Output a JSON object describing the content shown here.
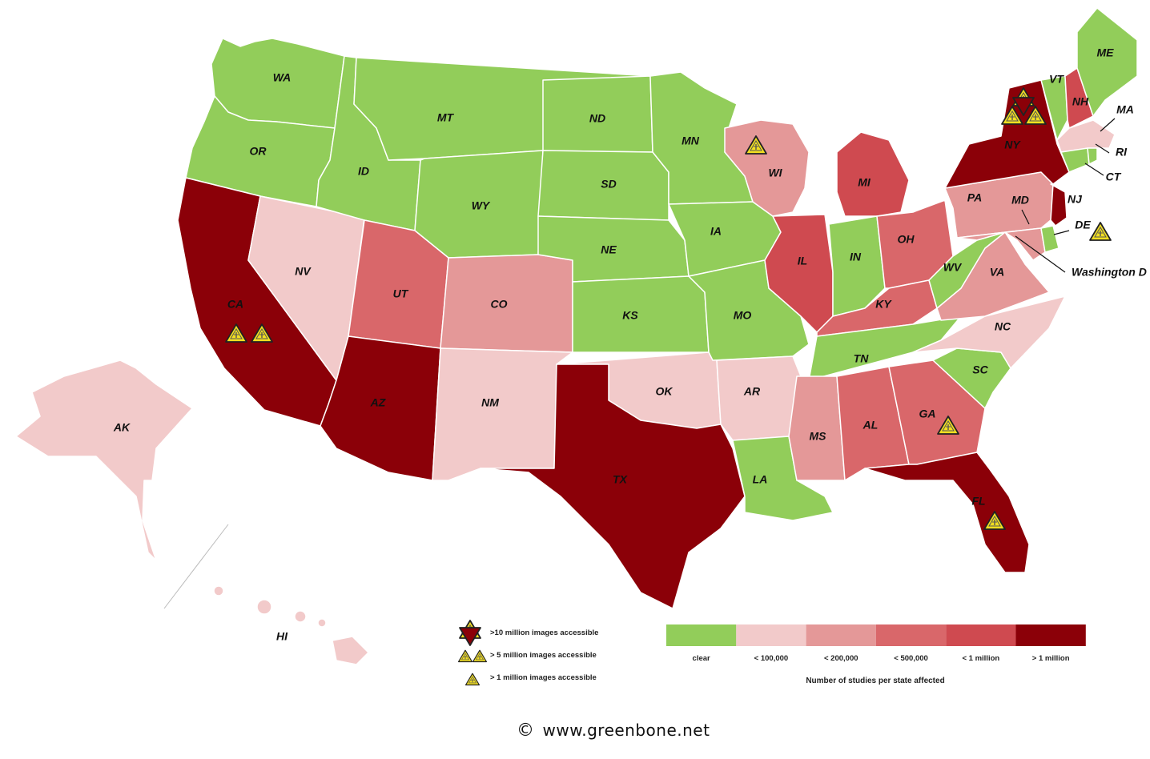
{
  "colors": {
    "clear": "#92cd5a",
    "lt100k": "#f2caca",
    "lt200k": "#e49898",
    "lt500k": "#d9676a",
    "lt1m": "#cf4a50",
    "gt1m": "#8b0008",
    "warning": "#f2df20"
  },
  "states": {
    "WA": {
      "label": "WA",
      "category": "clear"
    },
    "OR": {
      "label": "OR",
      "category": "clear"
    },
    "CA": {
      "label": "CA",
      "category": "gt1m",
      "warnings": 2
    },
    "NV": {
      "label": "NV",
      "category": "lt100k"
    },
    "ID": {
      "label": "ID",
      "category": "clear"
    },
    "MT": {
      "label": "MT",
      "category": "clear"
    },
    "WY": {
      "label": "WY",
      "category": "clear"
    },
    "UT": {
      "label": "UT",
      "category": "lt500k"
    },
    "AZ": {
      "label": "AZ",
      "category": "gt1m"
    },
    "CO": {
      "label": "CO",
      "category": "lt200k"
    },
    "NM": {
      "label": "NM",
      "category": "lt100k"
    },
    "ND": {
      "label": "ND",
      "category": "clear"
    },
    "SD": {
      "label": "SD",
      "category": "clear"
    },
    "NE": {
      "label": "NE",
      "category": "clear"
    },
    "KS": {
      "label": "KS",
      "category": "clear"
    },
    "OK": {
      "label": "OK",
      "category": "lt100k"
    },
    "TX": {
      "label": "TX",
      "category": "gt1m"
    },
    "MN": {
      "label": "MN",
      "category": "clear"
    },
    "IA": {
      "label": "IA",
      "category": "clear"
    },
    "MO": {
      "label": "MO",
      "category": "clear"
    },
    "AR": {
      "label": "AR",
      "category": "lt100k"
    },
    "LA": {
      "label": "LA",
      "category": "clear"
    },
    "WI": {
      "label": "WI",
      "category": "lt200k",
      "warnings": 1
    },
    "IL": {
      "label": "IL",
      "category": "lt1m"
    },
    "MI": {
      "label": "MI",
      "category": "lt1m"
    },
    "IN": {
      "label": "IN",
      "category": "clear"
    },
    "OH": {
      "label": "OH",
      "category": "lt500k"
    },
    "KY": {
      "label": "KY",
      "category": "lt500k"
    },
    "TN": {
      "label": "TN",
      "category": "clear"
    },
    "MS": {
      "label": "MS",
      "category": "lt200k"
    },
    "AL": {
      "label": "AL",
      "category": "lt500k"
    },
    "GA": {
      "label": "GA",
      "category": "lt500k",
      "warnings": 1
    },
    "FL": {
      "label": "FL",
      "category": "gt1m",
      "warnings": 1
    },
    "SC": {
      "label": "SC",
      "category": "clear"
    },
    "NC": {
      "label": "NC",
      "category": "lt100k"
    },
    "VA": {
      "label": "VA",
      "category": "lt200k"
    },
    "WV": {
      "label": "WV",
      "category": "clear"
    },
    "PA": {
      "label": "PA",
      "category": "lt200k"
    },
    "MD": {
      "label": "MD",
      "category": "lt200k"
    },
    "DE": {
      "label": "DE",
      "category": "clear",
      "warnings": 1
    },
    "NJ": {
      "label": "NJ",
      "category": "gt1m"
    },
    "NY": {
      "label": "NY",
      "category": "gt1m",
      "warnings": 3
    },
    "CT": {
      "label": "CT",
      "category": "clear"
    },
    "RI": {
      "label": "RI",
      "category": "clear"
    },
    "MA": {
      "label": "MA",
      "category": "lt100k"
    },
    "VT": {
      "label": "VT",
      "category": "clear"
    },
    "NH": {
      "label": "NH",
      "category": "lt1m"
    },
    "ME": {
      "label": "ME",
      "category": "clear"
    },
    "AK": {
      "label": "AK",
      "category": "lt100k"
    },
    "HI": {
      "label": "HI",
      "category": "lt100k"
    },
    "DC": {
      "label": "Washington D"
    }
  },
  "legend": {
    "warnings": [
      {
        "label": ">10 million images accessible",
        "icon": "triple-warning-icon"
      },
      {
        "label": "> 5 million images accessible",
        "icon": "double-warning-icon"
      },
      {
        "label": "> 1 million images accessible",
        "icon": "single-warning-icon"
      }
    ],
    "scale": [
      {
        "label": "clear",
        "category": "clear"
      },
      {
        "label": "< 100,000",
        "category": "lt100k"
      },
      {
        "label": "< 200,000",
        "category": "lt200k"
      },
      {
        "label": "< 500,000",
        "category": "lt500k"
      },
      {
        "label": "< 1 million",
        "category": "lt1m"
      },
      {
        "label": "> 1 million",
        "category": "gt1m"
      }
    ],
    "caption": "Number of studies per state affected"
  },
  "footer": {
    "copyright_symbol": "©",
    "website": "www.greenbone.net"
  }
}
